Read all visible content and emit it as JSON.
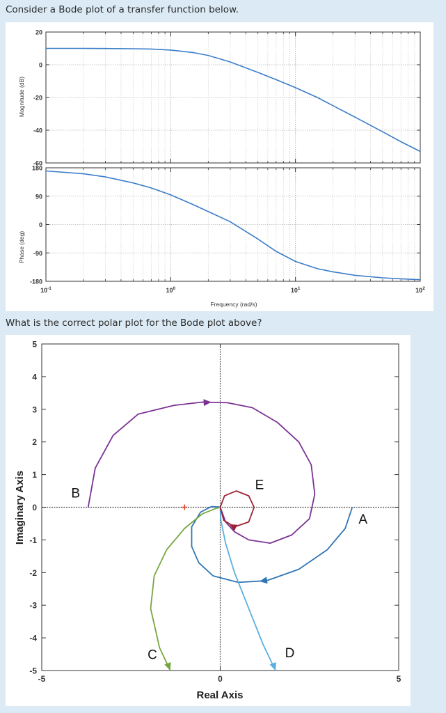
{
  "question1": "Consider a Bode plot of a transfer function below.",
  "question2": "What is the correct polar plot for the Bode plot above?",
  "chart_data": [
    {
      "type": "line",
      "panel": "magnitude",
      "ylabel": "Magnitude (dB)",
      "xscale": "log",
      "xlim": [
        0.1,
        100
      ],
      "ylim": [
        -60,
        20
      ],
      "yticks": [
        20,
        0,
        -20,
        -40,
        -60
      ],
      "grid": true,
      "series": [
        {
          "x": [
            0.1,
            0.2,
            0.3,
            0.5,
            0.7,
            1.0,
            1.5,
            2.0,
            3.0,
            5.0,
            7.0,
            10,
            15,
            20,
            30,
            50,
            70,
            100
          ],
          "y": [
            10,
            10,
            9.9,
            9.8,
            9.6,
            9,
            7.5,
            5.7,
            1.7,
            -4.7,
            -9.1,
            -14,
            -20,
            -25,
            -32,
            -41,
            -47,
            -53
          ]
        }
      ]
    },
    {
      "type": "line",
      "panel": "phase",
      "ylabel": "Phase (deg)",
      "xlabel": "Frequency  (rad/s)",
      "xscale": "log",
      "xlim": [
        0.1,
        100
      ],
      "ylim": [
        -180,
        180
      ],
      "yticks": [
        180,
        90,
        0,
        -90,
        -180
      ],
      "xtick_exponents": [
        "-1",
        "0",
        "1",
        "2"
      ],
      "grid": true,
      "series": [
        {
          "x": [
            0.1,
            0.2,
            0.3,
            0.5,
            0.7,
            1.0,
            1.5,
            2.0,
            3.0,
            5.0,
            7.0,
            10,
            15,
            20,
            30,
            50,
            70,
            100
          ],
          "y": [
            170,
            161,
            151,
            132,
            116,
            94,
            64,
            41,
            9,
            -46,
            -85,
            -117,
            -140,
            -150,
            -161,
            -169,
            -172,
            -175
          ]
        }
      ]
    },
    {
      "type": "line",
      "panel": "polar",
      "xlabel": "Real Axis",
      "ylabel": "Imaginary Axis",
      "xlim": [
        -5,
        5
      ],
      "ylim": [
        -5,
        5
      ],
      "xticks": [
        -5,
        0,
        5
      ],
      "yticks": [
        5,
        4,
        3,
        2,
        1,
        0,
        -1,
        -2,
        -3,
        -4,
        -5
      ],
      "series": [
        {
          "name": "A",
          "color": "#2f75b5",
          "points": [
            [
              3.7,
              0
            ],
            [
              3.5,
              -0.65
            ],
            [
              3.0,
              -1.3
            ],
            [
              2.2,
              -1.9
            ],
            [
              1.3,
              -2.25
            ],
            [
              0.5,
              -2.3
            ],
            [
              -0.2,
              -2.1
            ],
            [
              -0.6,
              -1.7
            ],
            [
              -0.8,
              -1.2
            ],
            [
              -0.8,
              -0.6
            ],
            [
              -0.55,
              -0.15
            ],
            [
              -0.25,
              0.02
            ],
            [
              -0.05,
              0.01
            ],
            [
              0,
              0
            ]
          ]
        },
        {
          "name": "B",
          "color": "#7b3294",
          "points": [
            [
              -3.7,
              0
            ],
            [
              -3.5,
              1.2
            ],
            [
              -3.0,
              2.2
            ],
            [
              -2.3,
              2.85
            ],
            [
              -1.3,
              3.12
            ],
            [
              -0.5,
              3.22
            ],
            [
              0.2,
              3.2
            ],
            [
              0.9,
              3.05
            ],
            [
              1.6,
              2.6
            ],
            [
              2.2,
              2.0
            ],
            [
              2.55,
              1.3
            ],
            [
              2.65,
              0.4
            ],
            [
              2.5,
              -0.35
            ],
            [
              2.0,
              -0.85
            ],
            [
              1.4,
              -1.1
            ],
            [
              0.8,
              -1.0
            ],
            [
              0.4,
              -0.75
            ],
            [
              0.15,
              -0.45
            ],
            [
              0.05,
              -0.15
            ],
            [
              0,
              0
            ]
          ]
        },
        {
          "name": "C",
          "color": "#77a641",
          "points": [
            [
              -1.4,
              -5
            ],
            [
              -1.7,
              -4.3
            ],
            [
              -1.95,
              -3.1
            ],
            [
              -1.85,
              -2.1
            ],
            [
              -1.5,
              -1.3
            ],
            [
              -1.0,
              -0.65
            ],
            [
              -0.5,
              -0.2
            ],
            [
              -0.15,
              -0.05
            ],
            [
              0,
              0
            ]
          ]
        },
        {
          "name": "D",
          "color": "#5aaee0",
          "points": [
            [
              1.55,
              -5
            ],
            [
              1.2,
              -4.2
            ],
            [
              0.8,
              -3.1
            ],
            [
              0.4,
              -2.0
            ],
            [
              0.15,
              -1.1
            ],
            [
              0.02,
              -0.4
            ],
            [
              0,
              0
            ]
          ]
        },
        {
          "name": "E",
          "color": "#9b2335",
          "points": [
            [
              0,
              0
            ],
            [
              0.12,
              0.35
            ],
            [
              0.45,
              0.5
            ],
            [
              0.8,
              0.35
            ],
            [
              0.95,
              0
            ],
            [
              0.8,
              -0.45
            ],
            [
              0.4,
              -0.6
            ],
            [
              0.1,
              -0.4
            ],
            [
              0,
              0
            ]
          ]
        }
      ],
      "arrows": [
        {
          "series": "A",
          "at": [
            1.5,
            -2.2
          ],
          "toward": [
            1.1,
            -2.27
          ]
        },
        {
          "series": "B",
          "at": [
            -0.55,
            3.2
          ],
          "toward": [
            -0.25,
            3.22
          ]
        },
        {
          "series": "C",
          "at": [
            -1.45,
            -4.85
          ],
          "toward": [
            -1.4,
            -5
          ]
        },
        {
          "series": "D",
          "at": [
            1.5,
            -4.85
          ],
          "toward": [
            1.55,
            -5
          ]
        },
        {
          "series": "E",
          "at": [
            0.35,
            -0.58
          ],
          "toward": [
            0.25,
            -0.52
          ]
        }
      ],
      "marker": {
        "x": -1,
        "y": 0,
        "symbol": "+",
        "color": "#e0402b"
      },
      "labels": [
        {
          "text": "A",
          "x": 4.0,
          "y": -0.5
        },
        {
          "text": "B",
          "x": -4.05,
          "y": 0.3
        },
        {
          "text": "C",
          "x": -1.9,
          "y": -4.65
        },
        {
          "text": "D",
          "x": 1.95,
          "y": -4.6
        },
        {
          "text": "E",
          "x": 1.1,
          "y": 0.55
        }
      ]
    }
  ]
}
